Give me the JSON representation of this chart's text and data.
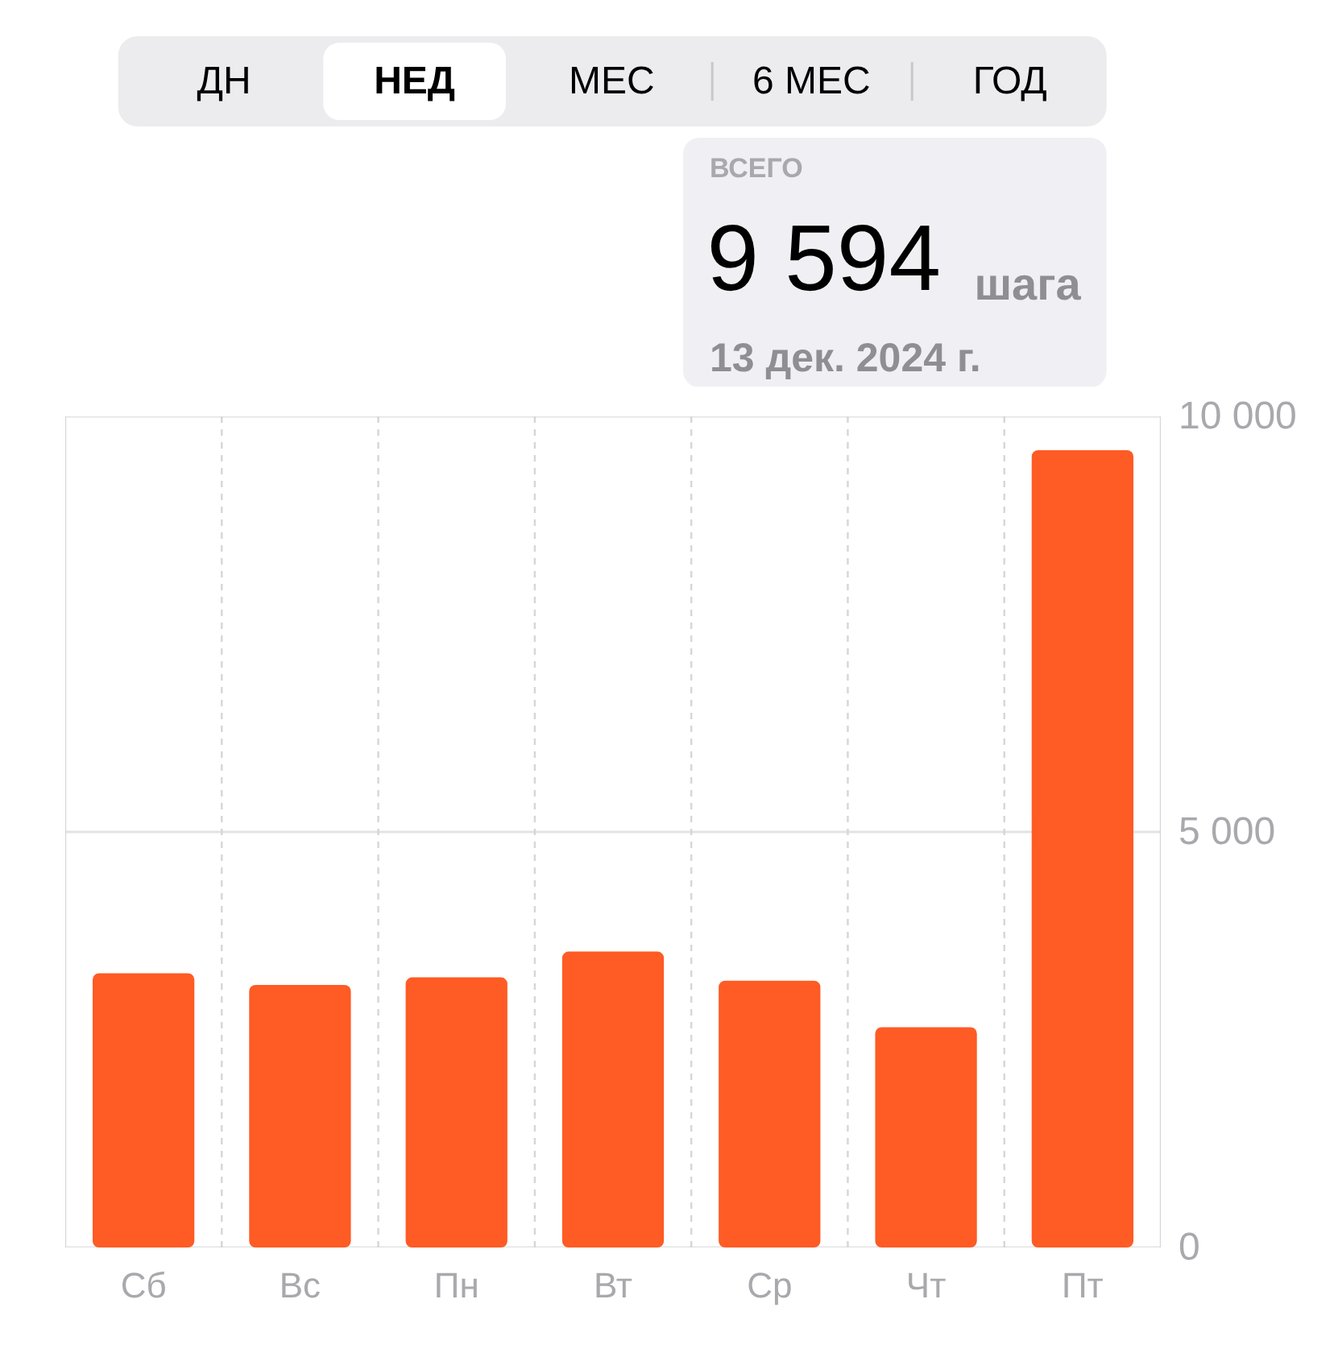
{
  "chart_data": {
    "type": "bar",
    "categories": [
      "Сб",
      "Вс",
      "Пн",
      "Вт",
      "Ср",
      "Чт",
      "Пт"
    ],
    "values": [
      3300,
      3160,
      3250,
      3560,
      3210,
      2650,
      9594
    ],
    "color": "#fe5b25",
    "ylim": [
      0,
      10000
    ],
    "yticks": [
      0,
      {
        "value": 5000,
        "label": "5 000"
      },
      {
        "value": 10000,
        "label": "10 000"
      }
    ],
    "grid": true,
    "ref_lines": [
      {
        "axis": "y",
        "value": 5000
      }
    ],
    "annotations": [
      "ДН",
      "НЕД",
      "МЕС",
      "6 МЕС",
      "ГОД",
      "ВСЕГО",
      "9 594",
      "шага",
      "13 дек. 2024 г."
    ]
  }
}
